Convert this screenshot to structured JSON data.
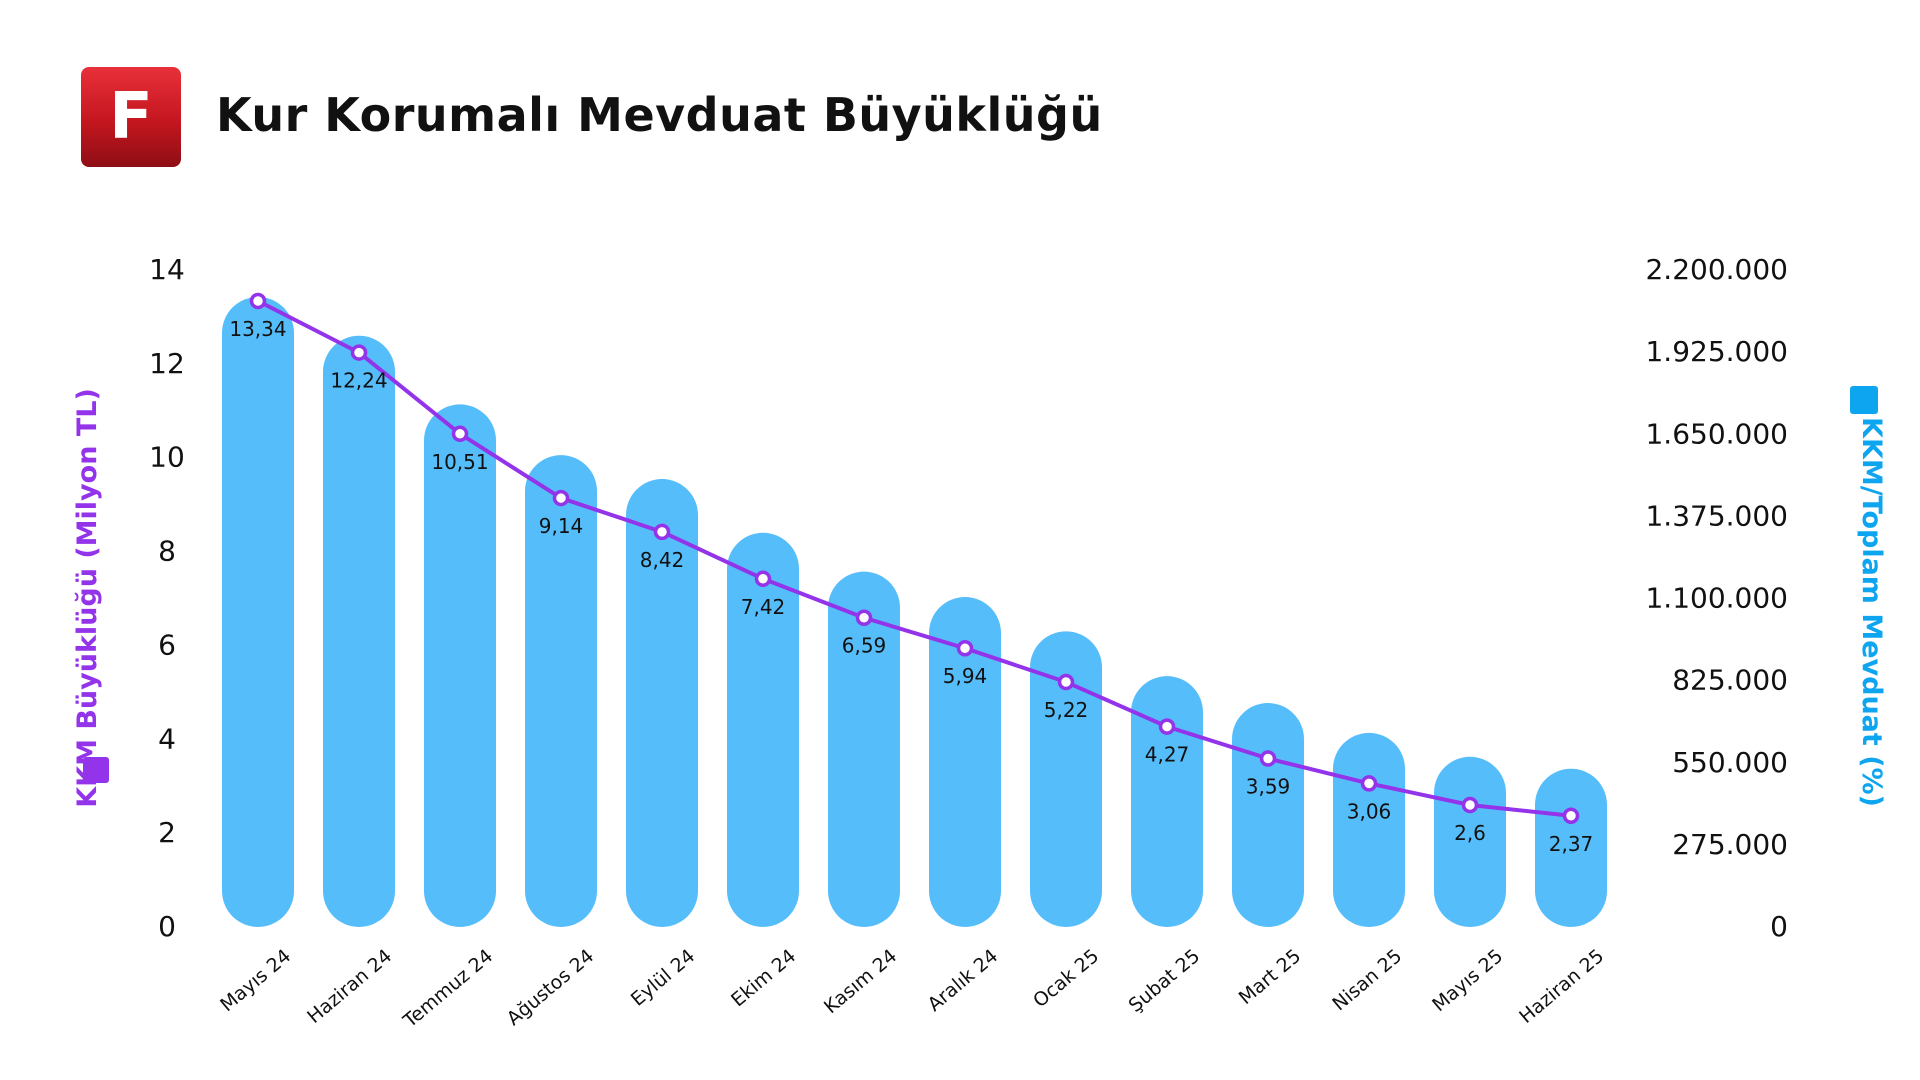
{
  "logo": {
    "letter": "F",
    "icon": "brand-logo-icon",
    "color": "#d41e27"
  },
  "title": "Kur Korumalı Mevduat Büyüklüğü",
  "chart_data": {
    "type": "bar",
    "title": "Kur Korumalı Mevduat Büyüklüğü",
    "categories": [
      "Mayıs 24",
      "Haziran 24",
      "Temmuz 24",
      "Ağustos 24",
      "Eylül 24",
      "Ekim 24",
      "Kasım 24",
      "Aralık 24",
      "Ocak 25",
      "Şubat 25",
      "Mart 25",
      "Nisan 25",
      "Mayıs 25",
      "Haziran 25"
    ],
    "series": [
      {
        "name": "KKM Büyüklüğü (Milyon TL)",
        "type": "line",
        "axis": "left",
        "color": "#9333ea",
        "values": [
          13.34,
          12.24,
          10.51,
          9.14,
          8.42,
          7.42,
          6.59,
          5.94,
          5.22,
          4.27,
          3.59,
          3.06,
          2.6,
          2.37
        ],
        "labels": [
          "13,34",
          "12,24",
          "10,51",
          "9,14",
          "8,42",
          "7,42",
          "6,59",
          "5,94",
          "5,22",
          "4,27",
          "3,59",
          "3,06",
          "2,6",
          "2,37"
        ]
      },
      {
        "name": "KKM/Toplam Mevduat (%)",
        "type": "bar",
        "axis": "right",
        "color": "#56bdfb",
        "values": [
          2110000,
          1980000,
          1750000,
          1580000,
          1500000,
          1320000,
          1190000,
          1105000,
          990000,
          840000,
          750000,
          650000,
          570000,
          530000
        ]
      }
    ],
    "left_axis": {
      "label": "KKM Büyüklüğü (Milyon TL)",
      "ylim": [
        0,
        14
      ],
      "ticks": [
        0,
        2,
        4,
        6,
        8,
        10,
        12,
        14
      ],
      "tick_labels": [
        "0",
        "2",
        "4",
        "6",
        "8",
        "10",
        "12",
        "14"
      ]
    },
    "right_axis": {
      "label": "KKM/Toplam Mevduat (%)",
      "ylim": [
        0,
        2200000
      ],
      "ticks": [
        0,
        275000,
        550000,
        825000,
        1100000,
        1375000,
        1650000,
        1925000,
        2200000
      ],
      "tick_labels": [
        "0",
        "275.000",
        "550.000",
        "825.000",
        "1.100.000",
        "1.375.000",
        "1.650.000",
        "1.925.000",
        "2.200.000"
      ]
    },
    "grid": false,
    "legend": "axis-titles"
  }
}
